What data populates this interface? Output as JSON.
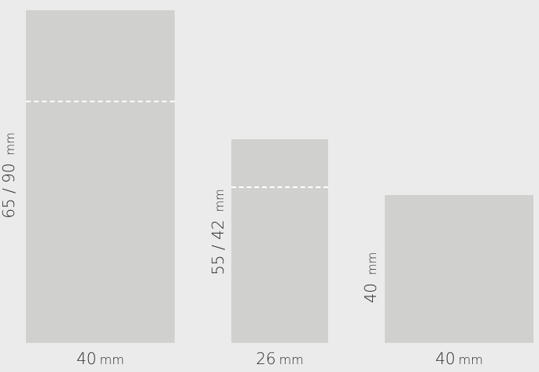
{
  "products": [
    {
      "width_value": "40",
      "width_unit": "mm",
      "height_value": "65 / 90",
      "height_unit": "mm"
    },
    {
      "width_value": "26",
      "width_unit": "mm",
      "height_value": "55 / 42",
      "height_unit": "mm"
    },
    {
      "width_value": "40",
      "width_unit": "mm",
      "height_value": "40",
      "height_unit": "mm"
    }
  ],
  "colors": {
    "background": "#ebebeb",
    "shape": "#d0d0ce",
    "dashed_line": "#ffffff",
    "text": "#2b2b2b"
  }
}
